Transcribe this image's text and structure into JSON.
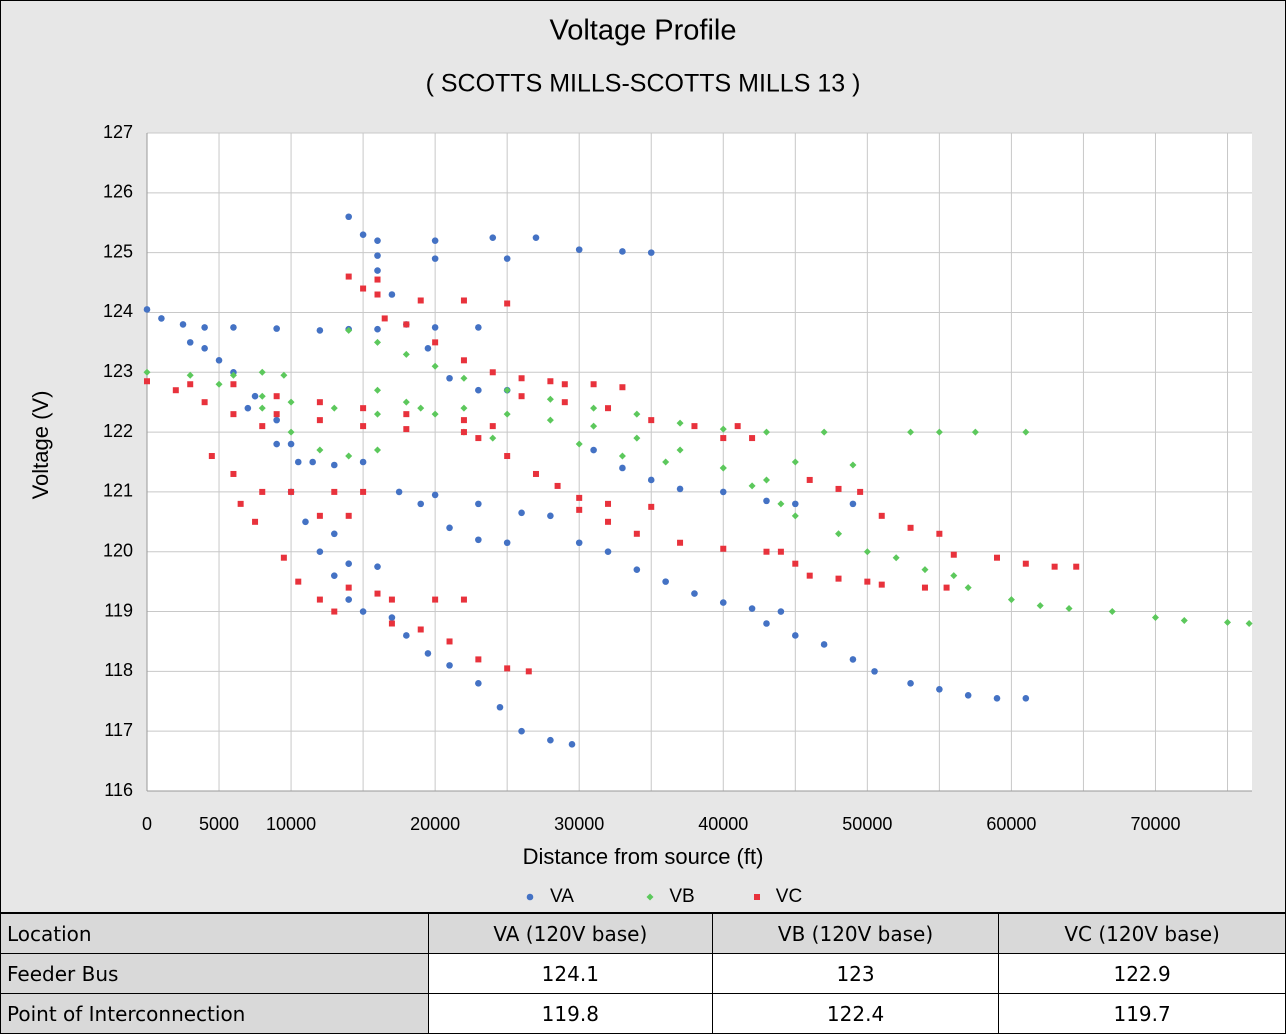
{
  "chart_data": {
    "type": "scatter",
    "title": "Voltage Profile",
    "subtitle": "( SCOTTS MILLS-SCOTTS MILLS 13 )",
    "x_label": "Distance from source (ft)",
    "y_label": "Voltage (V)",
    "xlim": [
      0,
      76700
    ],
    "xticks": [
      0,
      5000,
      10000,
      20000,
      30000,
      40000,
      50000,
      60000,
      70000
    ],
    "xgrid_minor": [
      15000,
      25000,
      35000,
      45000,
      55000,
      65000,
      75000
    ],
    "ylim": [
      116,
      127
    ],
    "yticks": [
      116,
      117,
      118,
      119,
      120,
      121,
      122,
      123,
      124,
      125,
      126,
      127
    ],
    "grid": true,
    "legend": "bottom",
    "series": [
      {
        "name": "VA",
        "color": "#4472c4",
        "marker": "circle",
        "x": [
          0,
          1000,
          2500,
          4000,
          6000,
          9000,
          12000,
          14000,
          16000,
          20000,
          23000,
          3000,
          4000,
          5000,
          6000,
          7500,
          9000,
          10000,
          10500,
          11500,
          13000,
          15000,
          7000,
          9000,
          10000,
          11000,
          12000,
          13000,
          14000,
          15000,
          17000,
          18000,
          19500,
          21000,
          23000,
          24500,
          26000,
          28000,
          29500,
          14000,
          15000,
          16000,
          20000,
          24000,
          27000,
          16000,
          20000,
          25000,
          30000,
          33000,
          35000,
          16000,
          17000,
          18000,
          19500,
          21000,
          23000,
          25000,
          17500,
          19000,
          21000,
          23000,
          25000,
          20000,
          23000,
          26000,
          28000,
          30000,
          32000,
          34000,
          36000,
          38000,
          40000,
          42000,
          44000,
          43000,
          45000,
          47000,
          49000,
          50500,
          53000,
          55000,
          57000,
          59000,
          61000,
          31000,
          33000,
          35000,
          37000,
          40000,
          43000,
          45000,
          49000,
          13000,
          14000,
          16000
        ],
        "values": [
          124.05,
          123.9,
          123.8,
          123.75,
          123.75,
          123.73,
          123.7,
          123.72,
          123.72,
          123.75,
          123.75,
          123.5,
          123.4,
          123.2,
          123.0,
          122.6,
          122.2,
          121.8,
          121.5,
          121.5,
          121.45,
          121.5,
          122.4,
          121.8,
          121.0,
          120.5,
          120.0,
          119.6,
          119.2,
          119.0,
          118.9,
          118.6,
          118.3,
          118.1,
          117.8,
          117.4,
          117.0,
          116.85,
          116.78,
          125.6,
          125.3,
          125.2,
          125.2,
          125.25,
          125.25,
          124.95,
          124.9,
          124.9,
          125.05,
          125.02,
          125.0,
          124.7,
          124.3,
          123.8,
          123.4,
          122.9,
          122.7,
          122.7,
          121.0,
          120.8,
          120.4,
          120.2,
          120.15,
          120.95,
          120.8,
          120.65,
          120.6,
          120.15,
          120.0,
          119.7,
          119.5,
          119.3,
          119.15,
          119.05,
          119.0,
          118.8,
          118.6,
          118.45,
          118.2,
          118.0,
          117.8,
          117.7,
          117.6,
          117.55,
          117.55,
          121.7,
          121.4,
          121.2,
          121.05,
          121.0,
          120.85,
          120.8,
          120.8,
          120.3,
          119.8,
          119.75
        ]
      },
      {
        "name": "VB",
        "color": "#5cc85c",
        "marker": "diamond",
        "x": [
          0,
          3000,
          6000,
          8000,
          9500,
          5000,
          8000,
          10000,
          13000,
          16000,
          19000,
          22000,
          25000,
          28000,
          31000,
          34000,
          37000,
          40000,
          42000,
          44000,
          8000,
          10000,
          12000,
          14000,
          16000,
          14000,
          16000,
          18000,
          20000,
          22000,
          25000,
          28000,
          31000,
          34000,
          37000,
          40000,
          43000,
          47000,
          30000,
          33000,
          36000,
          40000,
          43000,
          45000,
          49000,
          45000,
          48000,
          50000,
          52000,
          54000,
          56000,
          57000,
          60000,
          62000,
          64000,
          67000,
          70000,
          72000,
          75000,
          76500,
          53000,
          55000,
          57500,
          61000,
          16000,
          18000,
          20000,
          22000,
          24000
        ],
        "values": [
          123.0,
          122.95,
          122.95,
          123.0,
          122.95,
          122.8,
          122.6,
          122.5,
          122.4,
          122.3,
          122.4,
          122.4,
          122.3,
          122.2,
          122.1,
          121.9,
          121.7,
          121.4,
          121.1,
          120.8,
          122.4,
          122.0,
          121.7,
          121.6,
          121.7,
          123.7,
          123.5,
          123.3,
          123.1,
          122.9,
          122.7,
          122.55,
          122.4,
          122.3,
          122.15,
          122.05,
          122.0,
          122.0,
          121.8,
          121.6,
          121.5,
          121.4,
          121.2,
          121.5,
          121.45,
          120.6,
          120.3,
          120.0,
          119.9,
          119.7,
          119.6,
          119.4,
          119.2,
          119.1,
          119.05,
          119.0,
          118.9,
          118.85,
          118.82,
          118.8,
          122.0,
          122.0,
          122.0,
          122.0,
          122.7,
          122.5,
          122.3,
          122.0,
          121.9
        ]
      },
      {
        "name": "VC",
        "color": "#e8323c",
        "marker": "square",
        "x": [
          0,
          2000,
          4000,
          6000,
          8000,
          3000,
          6000,
          9000,
          12000,
          15000,
          18000,
          22000,
          24000,
          9000,
          12000,
          15000,
          18000,
          22000,
          4500,
          6000,
          8000,
          10000,
          13000,
          15000,
          12000,
          14000,
          6500,
          7500,
          9500,
          10500,
          12000,
          13000,
          14000,
          16000,
          17000,
          20000,
          22000,
          17000,
          19000,
          21000,
          23000,
          25000,
          26500,
          14000,
          16000,
          15000,
          16000,
          19000,
          22000,
          25000,
          16500,
          18000,
          20000,
          22000,
          24000,
          26000,
          28000,
          29000,
          31000,
          33000,
          26000,
          29000,
          32000,
          35000,
          38000,
          41000,
          40000,
          42000,
          23000,
          25000,
          27000,
          28500,
          30000,
          32000,
          35000,
          30000,
          32000,
          34000,
          37000,
          40000,
          43000,
          44000,
          45000,
          46000,
          48000,
          49500,
          51000,
          53000,
          55000,
          56000,
          59000,
          61000,
          63000,
          64500,
          46000,
          48000,
          50000,
          51000,
          54000,
          55500
        ],
        "values": [
          122.85,
          122.7,
          122.5,
          122.3,
          122.1,
          122.8,
          122.8,
          122.6,
          122.5,
          122.4,
          122.3,
          122.2,
          122.1,
          122.3,
          122.2,
          122.1,
          122.05,
          122.0,
          121.6,
          121.3,
          121.0,
          121.0,
          121.0,
          121.0,
          120.6,
          120.6,
          120.8,
          120.5,
          119.9,
          119.5,
          119.2,
          119.0,
          119.4,
          119.3,
          119.2,
          119.2,
          119.2,
          118.8,
          118.7,
          118.5,
          118.2,
          118.05,
          118.0,
          124.6,
          124.55,
          124.4,
          124.3,
          124.2,
          124.2,
          124.15,
          123.9,
          123.8,
          123.5,
          123.2,
          123.0,
          122.9,
          122.85,
          122.8,
          122.8,
          122.75,
          122.6,
          122.5,
          122.4,
          122.2,
          122.1,
          122.1,
          121.9,
          121.9,
          121.9,
          121.6,
          121.3,
          121.1,
          120.9,
          120.8,
          120.75,
          120.7,
          120.5,
          120.3,
          120.15,
          120.05,
          120.0,
          120.0,
          119.8,
          121.2,
          121.05,
          121.0,
          120.6,
          120.4,
          120.3,
          119.95,
          119.9,
          119.8,
          119.75,
          119.75,
          119.6,
          119.55,
          119.5,
          119.45,
          119.4,
          119.4
        ]
      }
    ]
  },
  "table": {
    "header": [
      "Location",
      "VA (120V base)",
      "VB (120V base)",
      "VC (120V base)"
    ],
    "rows": [
      [
        "Feeder Bus",
        "124.1",
        "123",
        "122.9"
      ],
      [
        "Point of Interconnection",
        "119.8",
        "122.4",
        "119.7"
      ]
    ]
  }
}
